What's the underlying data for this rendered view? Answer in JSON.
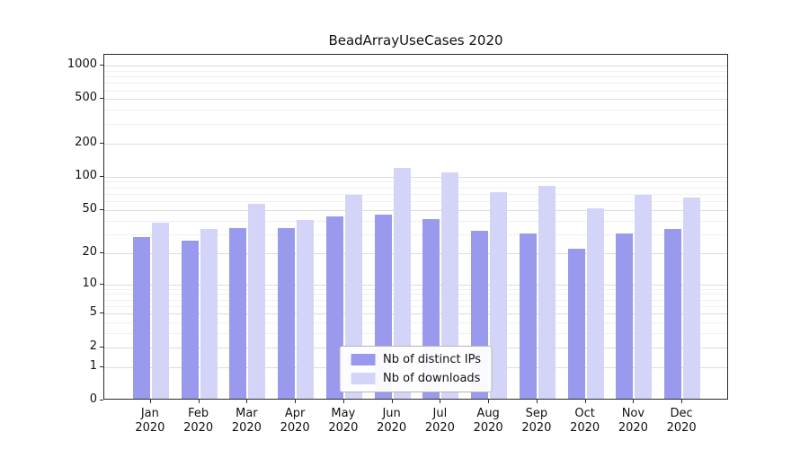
{
  "figure": {
    "title": "BeadArrayUseCases 2020"
  },
  "chart_data": {
    "type": "bar",
    "title": "BeadArrayUseCases 2020",
    "xlabel": "",
    "ylabel": "",
    "categories": [
      "Jan 2020",
      "Feb 2020",
      "Mar 2020",
      "Apr 2020",
      "May 2020",
      "Jun 2020",
      "Jul 2020",
      "Aug 2020",
      "Sep 2020",
      "Oct 2020",
      "Nov 2020",
      "Dec 2020"
    ],
    "series": [
      {
        "name": "Nb of distinct IPs",
        "color": "#9999ed",
        "values": [
          27,
          25,
          33,
          33,
          42,
          44,
          40,
          31,
          29,
          21,
          29,
          32
        ]
      },
      {
        "name": "Nb of downloads",
        "color": "#d4d4f8",
        "values": [
          37,
          32,
          55,
          39,
          66,
          115,
          105,
          70,
          80,
          50,
          66,
          63
        ]
      }
    ],
    "y_axis": {
      "scale": "log1p",
      "ticks": [
        0,
        1,
        2,
        5,
        10,
        20,
        50,
        100,
        200,
        500,
        1000
      ],
      "max": 1250
    },
    "minor_gridlines": [
      3,
      4,
      6,
      7,
      8,
      9,
      30,
      40,
      60,
      70,
      80,
      90,
      300,
      400,
      600,
      700,
      800,
      900
    ],
    "legend": {
      "position": "lower center"
    },
    "grid": true
  }
}
